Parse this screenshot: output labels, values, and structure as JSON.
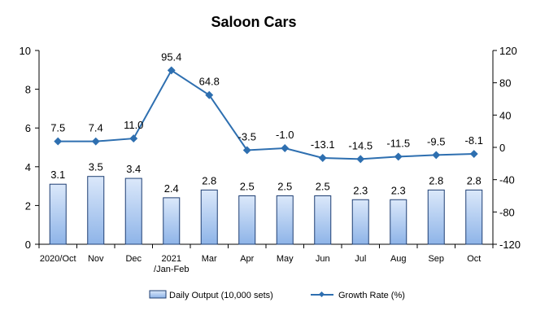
{
  "chart_data": {
    "type": "bar+line",
    "title": "Saloon Cars",
    "categories": [
      "2020/Oct",
      "Nov",
      "Dec",
      "2021\n/Jan-Feb",
      "Mar",
      "Apr",
      "May",
      "Jun",
      "Jul",
      "Aug",
      "Sep",
      "Oct"
    ],
    "series": [
      {
        "name": "Daily Output (10,000 sets)",
        "type": "bar",
        "axis": "left",
        "values": [
          3.1,
          3.5,
          3.4,
          2.4,
          2.8,
          2.5,
          2.5,
          2.5,
          2.3,
          2.3,
          2.8,
          2.8
        ],
        "labels": [
          "3.1",
          "3.5",
          "3.4",
          "2.4",
          "2.8",
          "2.5",
          "2.5",
          "2.5",
          "2.3",
          "2.3",
          "2.8",
          "2.8"
        ]
      },
      {
        "name": "Growth Rate (%)",
        "type": "line",
        "axis": "right",
        "values": [
          7.5,
          7.4,
          11.0,
          95.4,
          64.8,
          -3.5,
          -1.0,
          -13.1,
          -14.5,
          -11.5,
          -9.5,
          -8.1
        ],
        "labels": [
          "7.5",
          "7.4",
          "11.0",
          "95.4",
          "64.8",
          "-3.5",
          "-1.0",
          "-13.1",
          "-14.5",
          "-11.5",
          "-9.5",
          "-8.1"
        ]
      }
    ],
    "y_left": {
      "min": 0,
      "max": 10,
      "ticks": [
        "0",
        "2",
        "4",
        "6",
        "8",
        "10"
      ],
      "tick_values": [
        0,
        2,
        4,
        6,
        8,
        10
      ]
    },
    "y_right": {
      "min": -120,
      "max": 120,
      "ticks": [
        "-120",
        "-80",
        "-40",
        "0",
        "40",
        "80",
        "120"
      ],
      "tick_values": [
        -120,
        -80,
        -40,
        0,
        40,
        80,
        120
      ]
    },
    "grid": false,
    "legend_position": "bottom",
    "colors": {
      "bar_fill_top": "#dbe8fa",
      "bar_fill_bottom": "#8eb4e8",
      "bar_stroke": "#1f3f73",
      "line": "#2e6fb0",
      "axis": "#000000"
    }
  }
}
